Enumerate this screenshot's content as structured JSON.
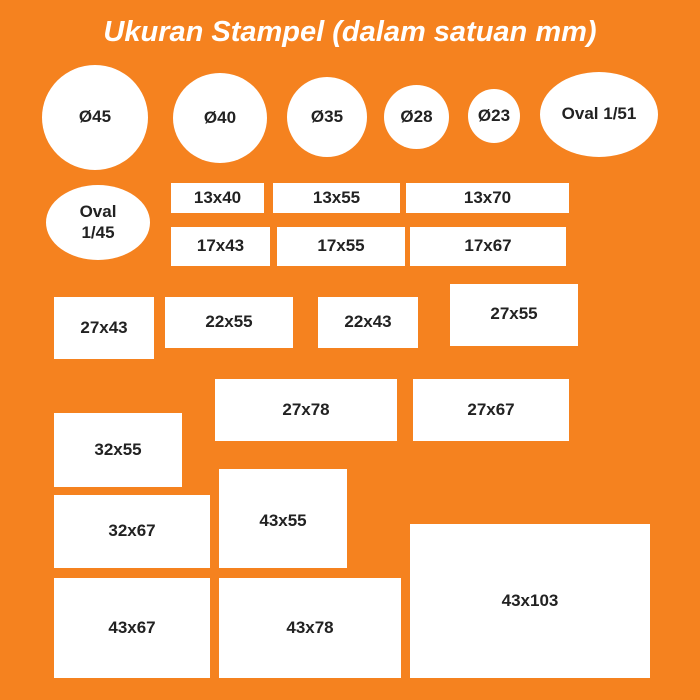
{
  "title": "Ukuran Stampel (dalam satuan mm)",
  "colors": {
    "background": "#f5821f",
    "shape": "#ffffff",
    "label": "#222222"
  },
  "round": [
    "Ø45",
    "Ø40",
    "Ø35",
    "Ø28",
    "Ø23"
  ],
  "oval": [
    "Oval 1/51",
    "Oval 1/45"
  ],
  "rect": [
    "13x40",
    "13x55",
    "13x70",
    "17x43",
    "17x55",
    "17x67",
    "27x43",
    "22x55",
    "22x43",
    "27x55",
    "27x78",
    "27x67",
    "32x55",
    "32x67",
    "43x55",
    "43x67",
    "43x78",
    "43x103"
  ]
}
